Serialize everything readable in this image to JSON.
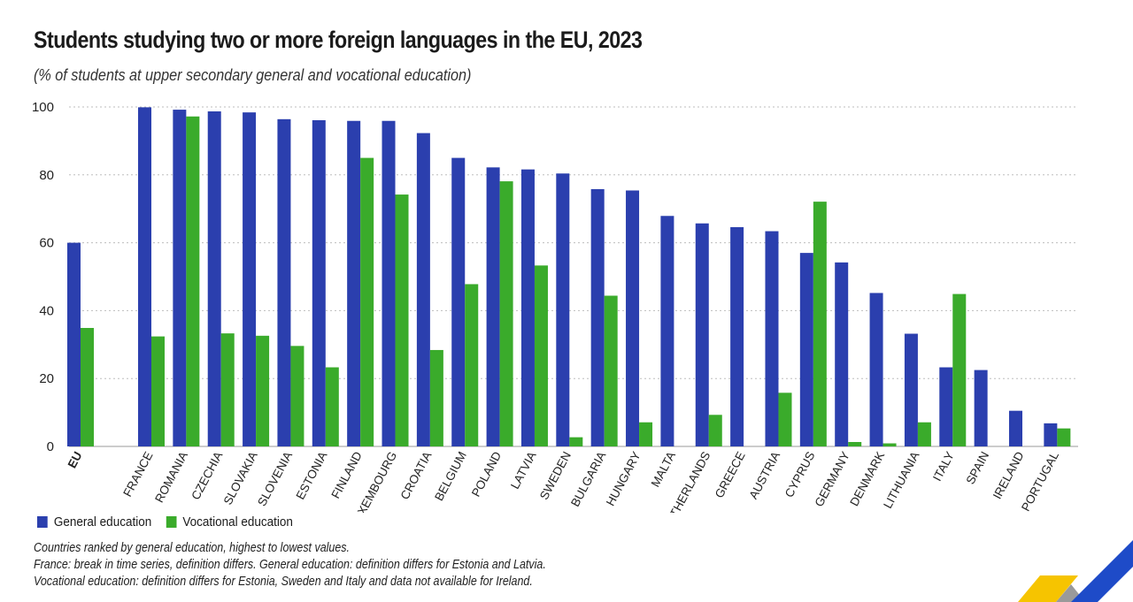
{
  "header": {
    "title": "Students studying two or more foreign languages in the EU, 2023",
    "subtitle": "(% of students at upper secondary general and vocational education)"
  },
  "legend": {
    "general_label": "General education",
    "vocational_label": "Vocational education"
  },
  "notes": {
    "line1": "Countries ranked by general education, highest to lowest values.",
    "line2": "France: break in time series, definition differs. General education: definition differs for Estonia and Latvia.",
    "line3": "Vocational education: definition differs for Estonia, Sweden and Italy and data not available for Ireland."
  },
  "colors": {
    "general": "#2b3fae",
    "vocational": "#3aab2b",
    "grid": "#bdbdbd",
    "logo_yellow": "#f6c400",
    "logo_blue": "#1e4bc8",
    "logo_grey": "#9a9a9a"
  },
  "chart_data": {
    "type": "bar",
    "categories": [
      "EU",
      "FRANCE",
      "ROMANIA",
      "CZECHIA",
      "SLOVAKIA",
      "SLOVENIA",
      "ESTONIA",
      "FINLAND",
      "LUXEMBOURG",
      "CROATIA",
      "BELGIUM",
      "POLAND",
      "LATVIA",
      "SWEDEN",
      "BULGARIA",
      "HUNGARY",
      "MALTA",
      "NETHERLANDS",
      "GREECE",
      "AUSTRIA",
      "CYPRUS",
      "GERMANY",
      "DENMARK",
      "LITHUANIA",
      "ITALY",
      "SPAIN",
      "IRELAND",
      "PORTUGAL"
    ],
    "series": [
      {
        "name": "General education",
        "values": [
          60.0,
          99.9,
          99.2,
          98.7,
          98.4,
          96.4,
          96.1,
          95.9,
          95.9,
          92.3,
          85.0,
          82.2,
          81.6,
          80.4,
          75.8,
          75.4,
          67.9,
          65.7,
          64.6,
          63.4,
          57.0,
          54.2,
          45.2,
          33.2,
          23.3,
          22.5,
          10.5,
          6.8
        ]
      },
      {
        "name": "Vocational education",
        "values": [
          34.9,
          32.4,
          97.2,
          33.3,
          32.6,
          29.6,
          23.3,
          85.0,
          74.2,
          28.4,
          47.8,
          78.1,
          53.3,
          2.7,
          44.4,
          7.1,
          null,
          9.3,
          null,
          15.8,
          72.1,
          1.3,
          0.9,
          7.1,
          44.9,
          null,
          null,
          5.3
        ]
      }
    ],
    "highlight_category": "EU",
    "ylim": [
      0,
      100
    ],
    "yticks": [
      0,
      20,
      40,
      60,
      80,
      100
    ],
    "grid": true,
    "legend_position": "bottom-left"
  }
}
